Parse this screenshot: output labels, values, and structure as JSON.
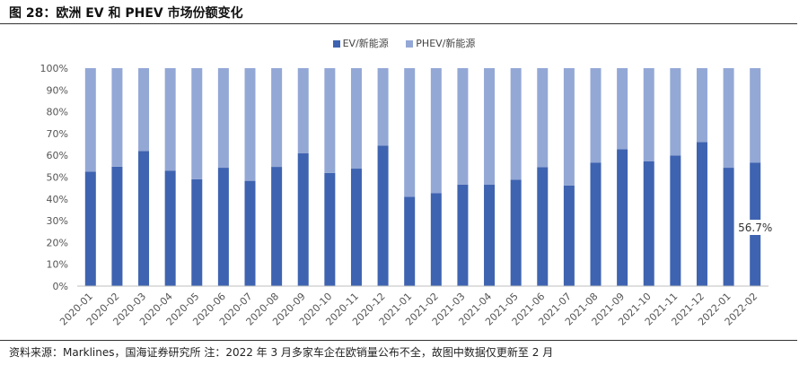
{
  "header": {
    "title": "图 28：欧洲 EV 和 PHEV 市场份额变化"
  },
  "footer": {
    "source": "资料来源：Marklines，国海证券研究所 注：2022 年 3 月多家车企在欧销量公布不全，故图中数据仅更新至 2 月"
  },
  "legend": [
    {
      "label": "EV/新能源",
      "color": "#3e63b0"
    },
    {
      "label": "PHEV/新能源",
      "color": "#94a8d6"
    }
  ],
  "chart_data": {
    "type": "bar",
    "stacked": true,
    "categories": [
      "2020-01",
      "2020-02",
      "2020-03",
      "2020-04",
      "2020-05",
      "2020-06",
      "2020-07",
      "2020-08",
      "2020-09",
      "2020-10",
      "2020-11",
      "2020-12",
      "2021-01",
      "2021-02",
      "2021-03",
      "2021-04",
      "2021-05",
      "2021-06",
      "2021-07",
      "2021-08",
      "2021-09",
      "2021-10",
      "2021-11",
      "2021-12",
      "2022-01",
      "2022-02"
    ],
    "series": [
      {
        "name": "EV/新能源",
        "color": "#3e63b0",
        "values": [
          52.5,
          54.8,
          62.0,
          53.0,
          49.0,
          54.3,
          48.3,
          54.7,
          60.9,
          51.9,
          53.9,
          64.5,
          41.0,
          42.6,
          46.6,
          46.5,
          48.8,
          54.6,
          46.1,
          56.7,
          62.8,
          57.2,
          59.9,
          66.1,
          54.3,
          56.7
        ]
      },
      {
        "name": "PHEV/新能源",
        "color": "#94a8d6",
        "values": [
          47.5,
          45.2,
          38.0,
          47.0,
          51.0,
          45.7,
          51.7,
          45.3,
          39.1,
          48.1,
          46.1,
          35.5,
          59.0,
          57.4,
          53.4,
          53.5,
          51.2,
          45.4,
          53.9,
          43.3,
          37.2,
          42.8,
          40.1,
          33.9,
          45.7,
          43.3
        ]
      }
    ],
    "ylim": [
      0,
      100
    ],
    "yticks": [
      "0%",
      "10%",
      "20%",
      "30%",
      "40%",
      "50%",
      "60%",
      "70%",
      "80%",
      "90%",
      "100%"
    ],
    "annotations": [
      {
        "category": "2022-02",
        "text": "56.7%"
      }
    ],
    "grid": false,
    "legend_position": "top"
  }
}
